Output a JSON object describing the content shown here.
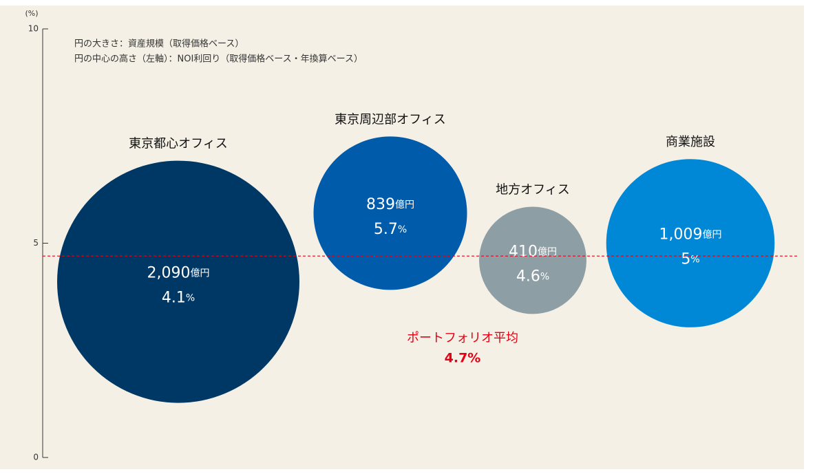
{
  "chart_data": {
    "type": "bubble",
    "y_axis_label": "(%)",
    "annotations": [
      "円の大きさ：資産規模（取得価格ベース）",
      "円の中心の高さ（左軸）：NOI利回り（取得価格ベース・年換算ベース）"
    ],
    "categories": [
      "東京都心オフィス",
      "東京周辺部オフィス",
      "地方オフィス",
      "商業施設"
    ],
    "values": [
      4.1,
      5.7,
      4.6,
      5.0
    ],
    "value_unit": "%",
    "sizes": [
      2090,
      839,
      410,
      1009
    ],
    "size_labels": [
      "2,090",
      "839",
      "410",
      "1,009"
    ],
    "size_unit": "億円",
    "colors": [
      "#003865",
      "#005bab",
      "#8e9ea5",
      "#0088d6"
    ],
    "ylim": [
      0,
      10
    ],
    "yticks": [
      0,
      5,
      10
    ],
    "average": {
      "name": "ポートフォリオ平均",
      "value": 4.7,
      "value_label": "4.7%",
      "color": "#e60012"
    }
  }
}
